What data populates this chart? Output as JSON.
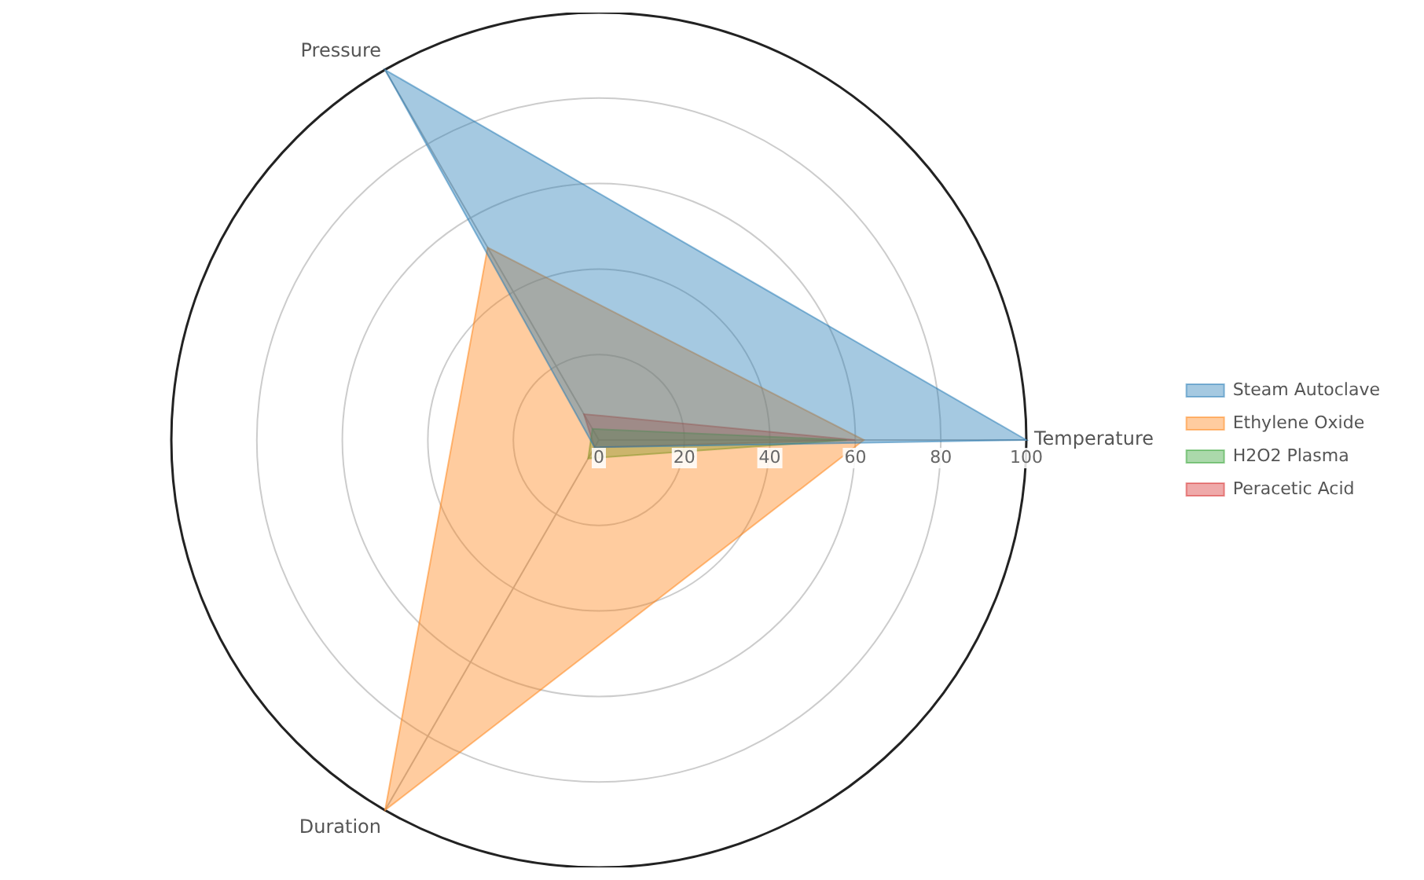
{
  "chart_data": {
    "type": "radar",
    "categories": [
      "Temperature",
      "Duration",
      "Pressure"
    ],
    "series": [
      {
        "name": "Steam Autoclave",
        "color": "#1f77b4",
        "values": [
          100,
          2,
          100
        ]
      },
      {
        "name": "Ethylene Oxide",
        "color": "#ff7f0e",
        "values": [
          62,
          100,
          52
        ]
      },
      {
        "name": "H2O2 Plasma",
        "color": "#2ca02c",
        "values": [
          58,
          5,
          3
        ]
      },
      {
        "name": "Peracetic Acid",
        "color": "#d62728",
        "values": [
          60,
          2,
          7
        ]
      }
    ],
    "ylim": [
      0,
      100
    ],
    "yticks": [
      0,
      20,
      40,
      60,
      80,
      100
    ],
    "grid": true,
    "legend": "right"
  }
}
